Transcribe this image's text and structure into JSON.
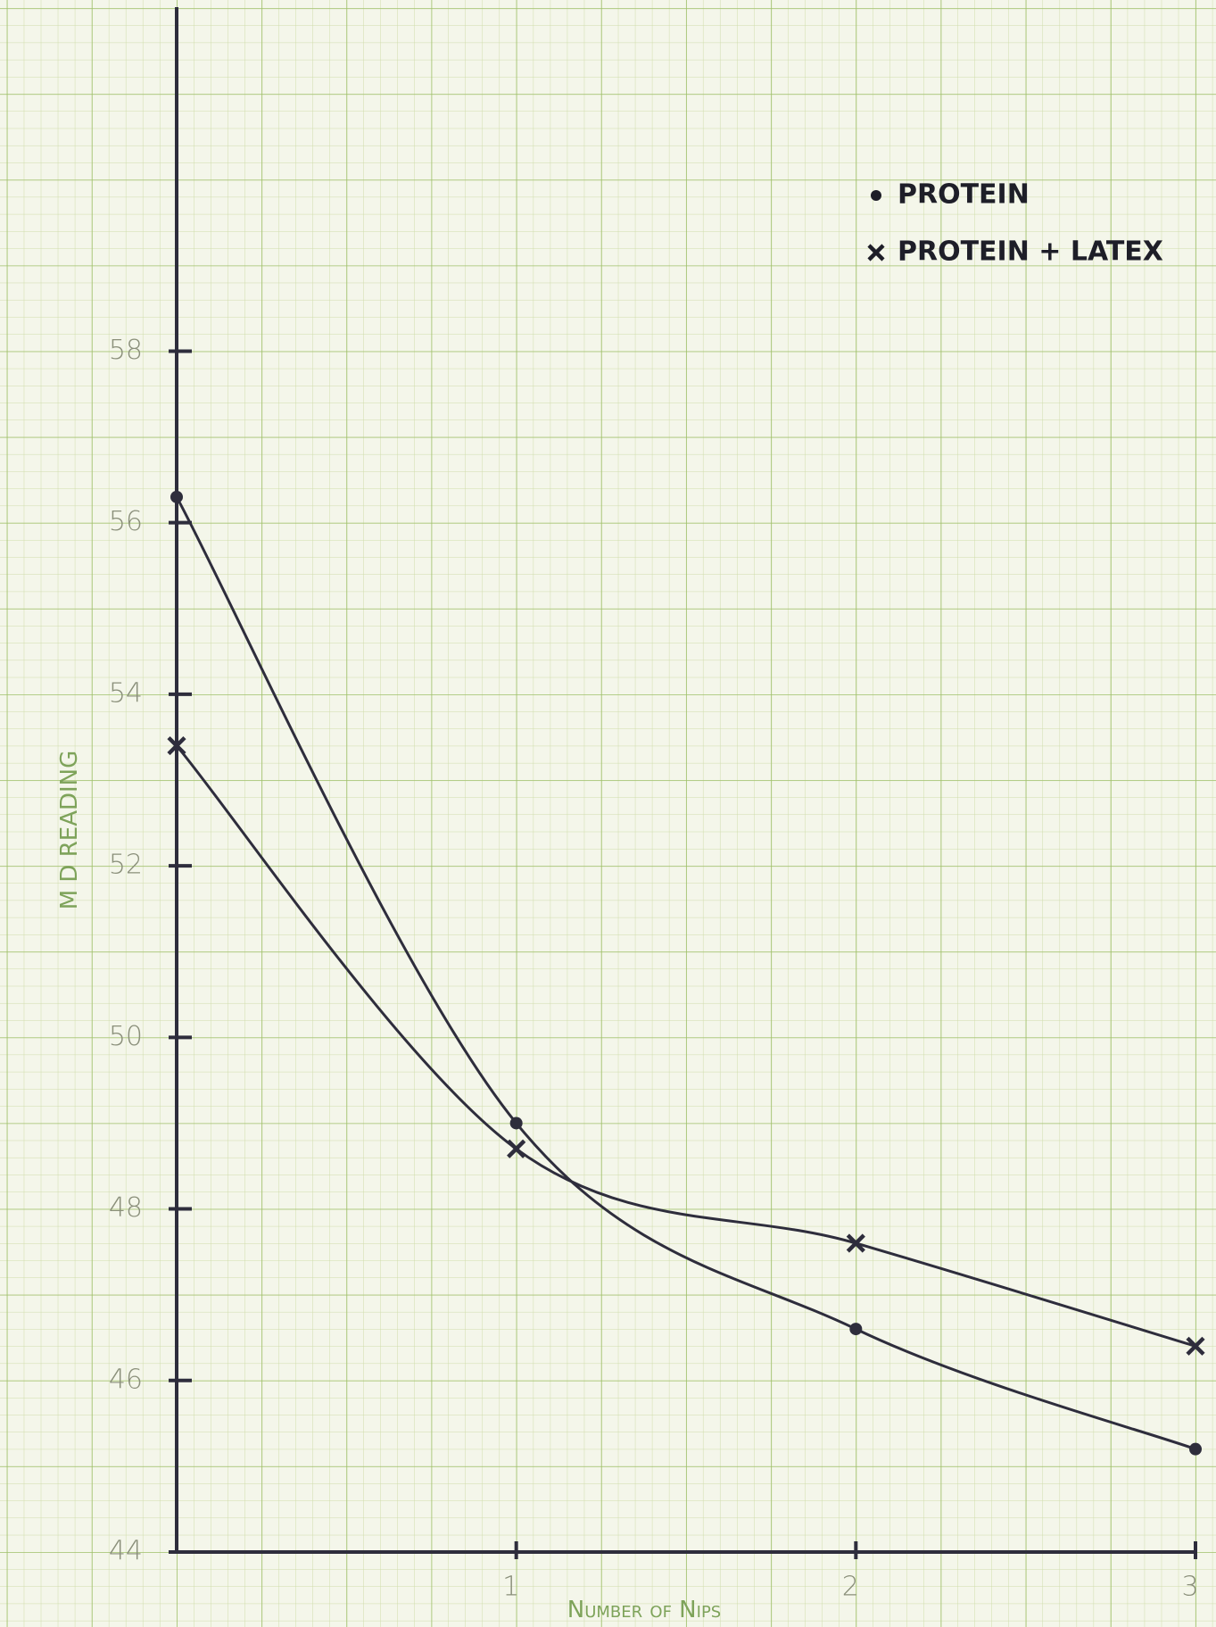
{
  "chart_data": {
    "type": "line",
    "xlabel": "Number of Nips",
    "ylabel": "M D READING",
    "x": [
      0,
      1,
      2,
      3
    ],
    "series": [
      {
        "name": "PROTEIN",
        "color": "#2e2d3c",
        "marker": "dot",
        "values": [
          56.3,
          49.0,
          46.6,
          45.2
        ]
      },
      {
        "name": "PROTEIN + LATEX",
        "color": "#2e2d3c",
        "marker": "x",
        "values": [
          53.4,
          48.7,
          47.6,
          46.4
        ]
      }
    ],
    "xlim": [
      0,
      3
    ],
    "ylim": [
      44,
      62
    ],
    "xticks": [
      1,
      2,
      3
    ],
    "yticks": [
      44,
      46,
      48,
      50,
      52,
      54,
      56,
      58
    ],
    "legend": "upper right"
  }
}
